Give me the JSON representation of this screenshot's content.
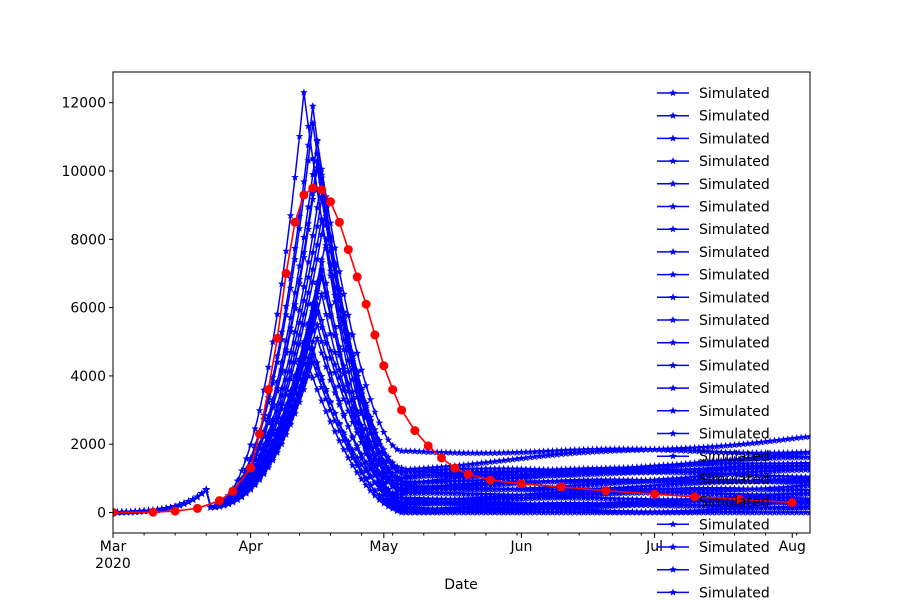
{
  "chart_data": {
    "type": "line",
    "title": "",
    "xlabel": "Date",
    "ylabel": "",
    "x_range": [
      "2020-03-01",
      "2020-08-05"
    ],
    "ylim": [
      -600,
      12900
    ],
    "grid": false,
    "legend_placement": "top-right",
    "x_ticks": [
      {
        "date": "2020-03-01",
        "label": "Mar",
        "sublabel": "2020"
      },
      {
        "date": "2020-04-01",
        "label": "Apr",
        "sublabel": ""
      },
      {
        "date": "2020-05-01",
        "label": "May",
        "sublabel": ""
      },
      {
        "date": "2020-06-01",
        "label": "Jun",
        "sublabel": ""
      },
      {
        "date": "2020-07-01",
        "label": "Jul",
        "sublabel": ""
      },
      {
        "date": "2020-08-01",
        "label": "Aug",
        "sublabel": ""
      }
    ],
    "y_ticks": [
      0,
      2000,
      4000,
      6000,
      8000,
      10000,
      12000
    ],
    "observed_series": {
      "color": "#ff0000",
      "marker": "circle",
      "points": [
        [
          "2020-03-01",
          0
        ],
        [
          "2020-03-10",
          10
        ],
        [
          "2020-03-15",
          40
        ],
        [
          "2020-03-20",
          120
        ],
        [
          "2020-03-25",
          350
        ],
        [
          "2020-03-28",
          620
        ],
        [
          "2020-04-01",
          1300
        ],
        [
          "2020-04-03",
          2300
        ],
        [
          "2020-04-05",
          3600
        ],
        [
          "2020-04-07",
          5100
        ],
        [
          "2020-04-09",
          7000
        ],
        [
          "2020-04-11",
          8500
        ],
        [
          "2020-04-13",
          9300
        ],
        [
          "2020-04-15",
          9500
        ],
        [
          "2020-04-17",
          9450
        ],
        [
          "2020-04-19",
          9100
        ],
        [
          "2020-04-21",
          8500
        ],
        [
          "2020-04-23",
          7700
        ],
        [
          "2020-04-25",
          6900
        ],
        [
          "2020-04-27",
          6100
        ],
        [
          "2020-04-29",
          5200
        ],
        [
          "2020-05-01",
          4300
        ],
        [
          "2020-05-03",
          3600
        ],
        [
          "2020-05-05",
          3000
        ],
        [
          "2020-05-08",
          2400
        ],
        [
          "2020-05-11",
          1950
        ],
        [
          "2020-05-14",
          1600
        ],
        [
          "2020-05-17",
          1300
        ],
        [
          "2020-05-20",
          1120
        ],
        [
          "2020-05-25",
          950
        ],
        [
          "2020-06-01",
          840
        ],
        [
          "2020-06-10",
          750
        ],
        [
          "2020-06-20",
          640
        ],
        [
          "2020-07-01",
          540
        ],
        [
          "2020-07-10",
          460
        ],
        [
          "2020-07-20",
          390
        ],
        [
          "2020-08-01",
          290
        ]
      ]
    },
    "simulated_series": {
      "name": "Simulated",
      "color": "#0000ff",
      "marker": "star",
      "runs": [
        {
          "peak_date": "2020-04-13",
          "peak": 12300,
          "tail": 0,
          "tail_end": 0
        },
        {
          "peak_date": "2020-04-15",
          "peak": 11900,
          "tail": 200,
          "tail_end": 300
        },
        {
          "peak_date": "2020-04-15",
          "peak": 11400,
          "tail": 1150,
          "tail_end": 1100
        },
        {
          "peak_date": "2020-04-16",
          "peak": 10900,
          "tail": 1800,
          "tail_end": 1800
        },
        {
          "peak_date": "2020-04-16",
          "peak": 10300,
          "tail": 1300,
          "tail_end": 2200
        },
        {
          "peak_date": "2020-04-17",
          "peak": 9800,
          "tail": 900,
          "tail_end": 1700
        },
        {
          "peak_date": "2020-04-17",
          "peak": 9200,
          "tail": 1200,
          "tail_end": 1300
        },
        {
          "peak_date": "2020-04-17",
          "peak": 8600,
          "tail": 600,
          "tail_end": 900
        },
        {
          "peak_date": "2020-04-18",
          "peak": 8000,
          "tail": 1000,
          "tail_end": 1500
        },
        {
          "peak_date": "2020-04-17",
          "peak": 7400,
          "tail": 400,
          "tail_end": 600
        },
        {
          "peak_date": "2020-04-17",
          "peak": 6900,
          "tail": 800,
          "tail_end": 1000
        },
        {
          "peak_date": "2020-04-17",
          "peak": 6400,
          "tail": 300,
          "tail_end": 500
        },
        {
          "peak_date": "2020-04-16",
          "peak": 5900,
          "tail": 700,
          "tail_end": 1200
        },
        {
          "peak_date": "2020-04-16",
          "peak": 5500,
          "tail": 200,
          "tail_end": 400
        },
        {
          "peak_date": "2020-04-16",
          "peak": 5100,
          "tail": 500,
          "tail_end": 700
        },
        {
          "peak_date": "2020-04-15",
          "peak": 4800,
          "tail": 100,
          "tail_end": 200
        },
        {
          "peak_date": "2020-04-15",
          "peak": 4600,
          "tail": 400,
          "tail_end": 800
        },
        {
          "peak_date": "2020-04-15",
          "peak": 4400,
          "tail": 150,
          "tail_end": 300
        },
        {
          "peak_date": "2020-04-14",
          "peak": 4300,
          "tail": 50,
          "tail_end": 100
        },
        {
          "peak_date": "2020-04-16",
          "peak": 6100,
          "tail": 1000,
          "tail_end": 1600
        },
        {
          "peak_date": "2020-04-17",
          "peak": 7100,
          "tail": 250,
          "tail_end": 350
        },
        {
          "peak_date": "2020-04-18",
          "peak": 8900,
          "tail": 650,
          "tail_end": 1000
        },
        {
          "peak_date": "2020-04-16",
          "peak": 10100,
          "tail": 900,
          "tail_end": 1400
        }
      ]
    },
    "legend_entries": [
      "Simulated",
      "Simulated",
      "Simulated",
      "Simulated",
      "Simulated",
      "Simulated",
      "Simulated",
      "Simulated",
      "Simulated",
      "Simulated",
      "Simulated",
      "Simulated",
      "Simulated",
      "Simulated",
      "Simulated",
      "Simulated",
      "Simulated",
      "Simulated",
      "Simulated",
      "Simulated",
      "Simulated",
      "Simulated",
      "Simulated"
    ]
  }
}
